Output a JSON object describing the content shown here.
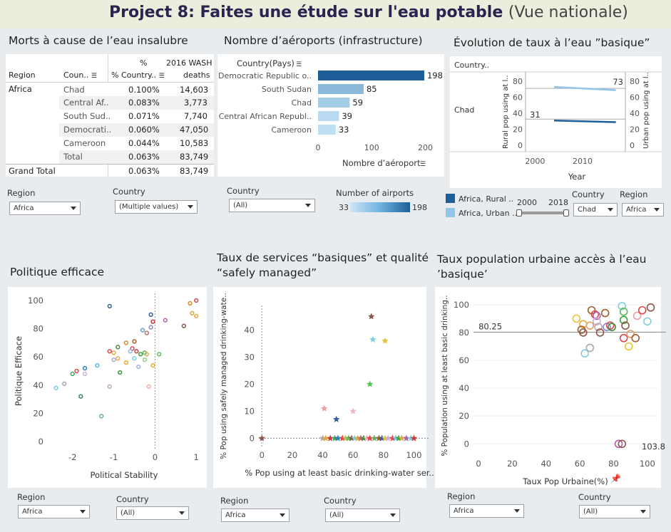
{
  "header": {
    "title": "Project 8: Faites une étude sur l'eau potable",
    "subtitle": "(Vue nationale)"
  },
  "panel_deaths": {
    "title": "Morts à cause de l’eau insalubre",
    "col_region": "Region",
    "col_country": "Coun..",
    "col_pct": "% Country..",
    "col_pct_top": "%",
    "col_deaths_top": "2016 WASH",
    "col_deaths": "deaths",
    "region": "Africa",
    "rows": [
      {
        "country": "Chad",
        "pct": "0.100%",
        "deaths": "14,603"
      },
      {
        "country": "Central Af..",
        "pct": "0.083%",
        "deaths": "3,773"
      },
      {
        "country": "South Sud..",
        "pct": "0.071%",
        "deaths": "7,740"
      },
      {
        "country": "Democrati..",
        "pct": "0.060%",
        "deaths": "47,050"
      },
      {
        "country": "Cameroon",
        "pct": "0.044%",
        "deaths": "10,583"
      },
      {
        "country": "Total",
        "pct": "0.063%",
        "deaths": "83,749"
      }
    ],
    "grand_total_label": "Grand Total",
    "grand_total_pct": "0.063%",
    "grand_total_deaths": "83,749",
    "filter_region_label": "Region",
    "filter_region_value": "Africa",
    "filter_country_label": "Country",
    "filter_country_value": "(Multiple values)"
  },
  "panel_airports": {
    "title": "Nombre d’aéroports (infrastructure)",
    "axis_header": "Country(Pays)",
    "xlabel": "Nombre d’aéroport",
    "filter_country_label": "Country",
    "filter_country_value": "(All)",
    "legend_title": "Number of airports",
    "legend_min": "33",
    "legend_max": "198"
  },
  "panel_evolution": {
    "title": "Évolution de taux à l’eau ”basique”",
    "col_header": "Country..",
    "row_label": "Chad",
    "ylabel_left": "Rural pop using at l..",
    "ylabel_right": "Urban pop using at l..",
    "label_top": "73",
    "label_low": "31",
    "xlabel": "Year",
    "legend": [
      {
        "label": "Africa, Rural ..",
        "color": "#1f5f99"
      },
      {
        "label": "Africa, Urban ..",
        "color": "#8fc6ea"
      }
    ],
    "slider_min": "2000",
    "slider_max": "2018",
    "filter_country_label": "Country",
    "filter_country_value": "Chad",
    "filter_region_label": "Region",
    "filter_region_value": "Africa"
  },
  "panel_politique": {
    "title": "Politique efficace",
    "filter_region_label": "Region",
    "filter_region_value": "Africa",
    "filter_country_label": "Country",
    "filter_country_value": "(All)"
  },
  "panel_services": {
    "title_line1": "Taux de services “basiques” et qualité",
    "title_line2": "“safely managed”",
    "filter_region_label": "Region",
    "filter_region_value": "Africa",
    "filter_country_label": "Country",
    "filter_country_value": "(All)"
  },
  "panel_urban": {
    "title_line1": "Taux population urbaine accès à l’eau",
    "title_line2": "’basique’",
    "filter_region_label": "Region",
    "filter_region_value": "Africa",
    "filter_country_label": "Country",
    "filter_country_value": "(All)"
  },
  "chart_data": [
    {
      "id": "airports",
      "type": "bar",
      "categories": [
        "Democratic Republic o..",
        "South Sudan",
        "Chad",
        "Central African Republ..",
        "Cameroon"
      ],
      "values": [
        198,
        85,
        59,
        39,
        33
      ],
      "xlabel": "Nombre d’aéroport",
      "xlim": [
        0,
        210
      ],
      "xticks": [
        0,
        100,
        200
      ]
    },
    {
      "id": "evolution",
      "type": "line",
      "series": [
        {
          "name": "Africa, Rural ..",
          "x": [
            2004,
            2017
          ],
          "y": [
            31,
            29
          ],
          "color": "#1f5f99"
        },
        {
          "name": "Africa, Urban ..",
          "x": [
            2004,
            2017
          ],
          "y": [
            73,
            69
          ],
          "color": "#8fc6ea"
        }
      ],
      "xticks": [
        2000,
        2010
      ],
      "xlim": [
        1998,
        2019
      ],
      "ylim": [
        0,
        90
      ],
      "yticks": [
        0,
        20,
        40,
        60,
        80
      ],
      "xlabel": "Year",
      "ylabel": "Rural pop using at l..",
      "y2label": "Urban pop using at l..",
      "grid": "none"
    },
    {
      "id": "politique",
      "type": "scatter",
      "xlabel": "Political Stability",
      "ylabel": "Politique Efficace",
      "xlim": [
        -2.6,
        1.1
      ],
      "ylim": [
        -3,
        103
      ],
      "xticks": [
        -2,
        -1,
        0,
        1
      ],
      "yticks": [
        0,
        20,
        40,
        60,
        80,
        100
      ],
      "reference_x": 0,
      "points": [
        [
          -1.1,
          96,
          "#2e5f9e"
        ],
        [
          -0.1,
          90,
          "#2e5f9e"
        ],
        [
          -0.05,
          85,
          "#c83c3c"
        ],
        [
          0.85,
          98,
          "#d08b2c"
        ],
        [
          1.0,
          100,
          "#e0454a"
        ],
        [
          0.9,
          91,
          "#c9b336"
        ],
        [
          1.0,
          89,
          "#e8a93a"
        ],
        [
          0.25,
          86,
          "#b05fa8"
        ],
        [
          0.7,
          82,
          "#8c564b"
        ],
        [
          -0.1,
          81,
          "#8b88d4"
        ],
        [
          -0.3,
          79,
          "#6b9ec9"
        ],
        [
          -0.2,
          77,
          "#c26a6a"
        ],
        [
          -0.7,
          70,
          "#d08b2c"
        ],
        [
          -0.5,
          71,
          "#a05d2b"
        ],
        [
          -0.9,
          67,
          "#3f8f3f"
        ],
        [
          -1.1,
          64,
          "#e0454a"
        ],
        [
          -1.0,
          63,
          "#e8a93a"
        ],
        [
          -0.55,
          66,
          "#e0454a"
        ],
        [
          -0.45,
          64,
          "#c83c3c"
        ],
        [
          -0.6,
          64,
          "#9bb7d9"
        ],
        [
          -0.35,
          62,
          "#3aa33a"
        ],
        [
          -0.25,
          63,
          "#62b162"
        ],
        [
          -0.2,
          62,
          "#d6b35a"
        ],
        [
          0.1,
          62,
          "#5bc05b"
        ],
        [
          -0.9,
          59,
          "#f4a74d"
        ],
        [
          -0.7,
          56,
          "#e8a93a"
        ],
        [
          -1.0,
          58,
          "#9bb7d9"
        ],
        [
          -0.5,
          59,
          "#7fcfd9"
        ],
        [
          -0.25,
          58,
          "#8fd18f"
        ],
        [
          -0.05,
          54,
          "#e8a93a"
        ],
        [
          -0.4,
          53,
          "#9bb7d9"
        ],
        [
          -1.9,
          50,
          "#e0454a"
        ],
        [
          -2.0,
          48,
          "#3fa65a"
        ],
        [
          -1.4,
          54,
          "#5fb8d9"
        ],
        [
          -1.7,
          52,
          "#2e7fc1"
        ],
        [
          -1.7,
          48,
          "#c9b0d9"
        ],
        [
          -0.85,
          49,
          "#3f8f3f"
        ],
        [
          -2.2,
          41,
          "#a8a8a8"
        ],
        [
          -2.4,
          38,
          "#7fc7e0"
        ],
        [
          -1.1,
          39,
          "#c2a5a5"
        ],
        [
          -0.15,
          39,
          "#e8b0a0"
        ],
        [
          -1.8,
          32,
          "#3a7f5a"
        ],
        [
          -1.3,
          18,
          "#6fb07f"
        ]
      ]
    },
    {
      "id": "services",
      "type": "scatter",
      "xlabel": "% Pop using at least basic drinking-water ser..",
      "ylabel": "% Pop using safely managed drinking-wate..",
      "xlim": [
        -2,
        104
      ],
      "ylim": [
        -2,
        48
      ],
      "xticks": [
        0,
        20,
        40,
        60,
        80,
        100
      ],
      "yticks": [
        0,
        10,
        20,
        30,
        40
      ],
      "reference_x": 0,
      "reference_y": 0,
      "marker": "star",
      "points": [
        [
          0,
          0,
          "#8c564b"
        ],
        [
          72,
          45,
          "#8c564b"
        ],
        [
          73,
          36.5,
          "#7fcfd9"
        ],
        [
          81,
          36,
          "#e8c33a"
        ],
        [
          71,
          20,
          "#5bc05b"
        ],
        [
          41,
          11,
          "#e8a0a0"
        ],
        [
          60,
          10,
          "#f4b6c2"
        ],
        [
          49,
          7,
          "#2e5f9e"
        ],
        [
          40,
          0,
          "#a8a8a8"
        ],
        [
          42,
          0,
          "#e8a93a"
        ],
        [
          45,
          0,
          "#c83c3c"
        ],
        [
          48,
          0,
          "#3fa65a"
        ],
        [
          50,
          0,
          "#2e7fc1"
        ],
        [
          53,
          0,
          "#e0454a"
        ],
        [
          55,
          0,
          "#d6b35a"
        ],
        [
          57,
          0,
          "#5bc05b"
        ],
        [
          59,
          0,
          "#8c564b"
        ],
        [
          61,
          0,
          "#7fcfd9"
        ],
        [
          63,
          0,
          "#e8a93a"
        ],
        [
          65,
          0,
          "#c26a6a"
        ],
        [
          67,
          0,
          "#3f8f3f"
        ],
        [
          69,
          0,
          "#f4b6c2"
        ],
        [
          71,
          0,
          "#e0454a"
        ],
        [
          74,
          0,
          "#62b162"
        ],
        [
          77,
          0,
          "#a05d2b"
        ],
        [
          79,
          0,
          "#2e5f9e"
        ],
        [
          81,
          0,
          "#e8c33a"
        ],
        [
          83,
          0,
          "#c9b0d9"
        ],
        [
          86,
          0,
          "#e0454a"
        ],
        [
          88,
          0,
          "#7fc7e0"
        ],
        [
          90,
          0,
          "#3aa33a"
        ],
        [
          92,
          0,
          "#e8a93a"
        ],
        [
          95,
          0,
          "#b05fa8"
        ],
        [
          98,
          0,
          "#7fcfd9"
        ],
        [
          100,
          0,
          "#c83c3c"
        ]
      ]
    },
    {
      "id": "urban",
      "type": "scatter",
      "xlabel": "Taux Pop Urbaine(%)",
      "ylabel": "% Population using at least basic drinking..",
      "xlim": [
        -3,
        106
      ],
      "ylim": [
        -6,
        104
      ],
      "xticks": [
        0,
        20,
        40,
        60,
        80,
        100
      ],
      "yticks": [
        0,
        20,
        40,
        60,
        80,
        100
      ],
      "reference_y": 80.25,
      "reference_label": "80.25",
      "corner_label": "103.8",
      "points": [
        [
          58,
          90,
          "#e8c33a"
        ],
        [
          62,
          86,
          "#e8a93a"
        ],
        [
          61,
          82,
          "#a05d2b"
        ],
        [
          62,
          80,
          "#8c564b"
        ],
        [
          63,
          65,
          "#7fcfd9"
        ],
        [
          66,
          69,
          "#a8a8a8"
        ],
        [
          66,
          85,
          "#e0a060"
        ],
        [
          67,
          96,
          "#a05d2b"
        ],
        [
          69,
          93,
          "#e0454a"
        ],
        [
          70,
          92,
          "#b05fa8"
        ],
        [
          70,
          88,
          "#c9b0d9"
        ],
        [
          71,
          84,
          "#c2a5a5"
        ],
        [
          72,
          80,
          "#8c564b"
        ],
        [
          75,
          94,
          "#a05d2b"
        ],
        [
          76,
          84,
          "#8b88d4"
        ],
        [
          78,
          85,
          "#e0454a"
        ],
        [
          79,
          84,
          "#3f8f3f"
        ],
        [
          83,
          0,
          "#b05fa8"
        ],
        [
          85,
          0,
          "#8c564b"
        ],
        [
          85,
          99,
          "#7fcfd9"
        ],
        [
          86,
          95,
          "#5bc05b"
        ],
        [
          86,
          89,
          "#3aa33a"
        ],
        [
          87,
          85,
          "#8c564b"
        ],
        [
          86,
          76,
          "#e0454a"
        ],
        [
          89,
          70,
          "#e8c33a"
        ],
        [
          90,
          79,
          "#e0a060"
        ],
        [
          93,
          76,
          "#a05d2b"
        ],
        [
          94,
          92,
          "#e8a0a0"
        ],
        [
          97,
          96,
          "#e0454a"
        ],
        [
          100,
          88,
          "#7fcfd9"
        ],
        [
          102,
          98,
          "#8c564b"
        ]
      ]
    }
  ]
}
